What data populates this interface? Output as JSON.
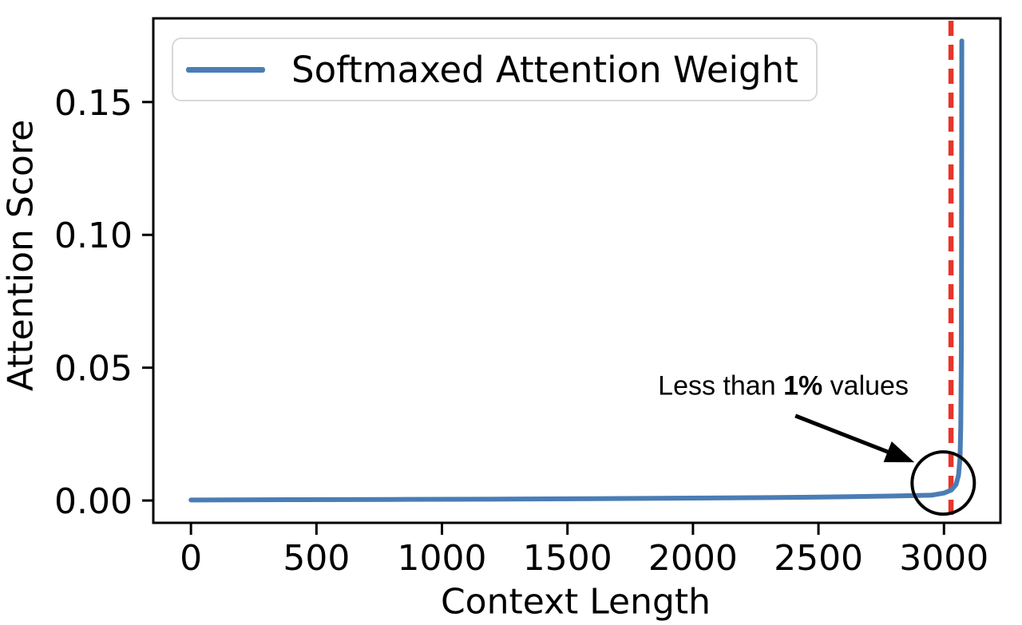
{
  "figure": {
    "background": "#ffffff"
  },
  "chart_data": {
    "type": "line",
    "title": "",
    "xlabel": "Context Length",
    "ylabel": "Attention Score",
    "xlim": [
      -150,
      3225
    ],
    "ylim": [
      -0.0084,
      0.1815
    ],
    "x_ticks": [
      0,
      500,
      1000,
      1500,
      2000,
      2500,
      3000
    ],
    "y_ticks": [
      {
        "v": 0.0,
        "label": "0.00"
      },
      {
        "v": 0.05,
        "label": "0.05"
      },
      {
        "v": 0.1,
        "label": "0.10"
      },
      {
        "v": 0.15,
        "label": "0.15"
      }
    ],
    "grid": false,
    "axis_color": "#000000",
    "legend": {
      "position": "upper-left",
      "label": "Softmaxed Attention Weight",
      "line_color": "#4a7db5"
    },
    "series": [
      {
        "name": "Softmaxed Attention Weight",
        "color": "#4a7db5",
        "line_width": 6,
        "points": [
          [
            0,
            0.0002
          ],
          [
            400,
            0.0003
          ],
          [
            800,
            0.0004
          ],
          [
            1200,
            0.0005
          ],
          [
            1600,
            0.0007
          ],
          [
            2000,
            0.0009
          ],
          [
            2300,
            0.0011
          ],
          [
            2600,
            0.0014
          ],
          [
            2800,
            0.0017
          ],
          [
            2950,
            0.002
          ],
          [
            3000,
            0.0028
          ],
          [
            3030,
            0.004
          ],
          [
            3048,
            0.006
          ],
          [
            3058,
            0.0095
          ],
          [
            3064,
            0.016
          ],
          [
            3067,
            0.028
          ],
          [
            3069,
            0.055
          ],
          [
            3070,
            0.1
          ],
          [
            3071,
            0.173
          ]
        ]
      }
    ],
    "vline": {
      "x": 3028,
      "color": "#e8352a",
      "style": "dashed",
      "dash": [
        19,
        11
      ],
      "width": 6.5
    },
    "annotation": {
      "text_prefix": "Less than ",
      "text_bold": "1%",
      "text_suffix": " values",
      "anchor": {
        "x": 2360,
        "y": 0.043
      },
      "arrow": {
        "from": {
          "x": 2408,
          "y": 0.0319
        },
        "to": {
          "x": 2882,
          "y": 0.0144
        },
        "color": "#000000"
      },
      "circle": {
        "x": 2997,
        "y": 0.0066,
        "radius_px": 39,
        "color": "#000000"
      }
    }
  }
}
